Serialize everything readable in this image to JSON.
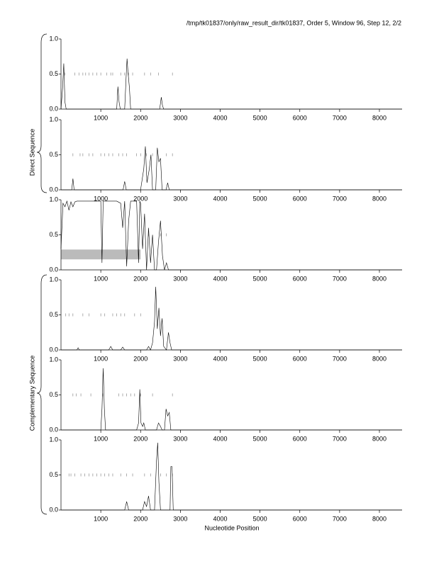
{
  "page": {
    "title": "/tmp/tk01837/only/raw_result_dir/tk01837, Order 5, Window 96, Step 12, 2/2",
    "xlabel": "Nucleotide Position",
    "groups": [
      "Direct Sequence",
      "Complementary Sequence"
    ]
  },
  "chart_data": [
    {
      "type": "line",
      "color": "#000000",
      "xlim": [
        0,
        8570
      ],
      "ylim": [
        0,
        1
      ],
      "xticks": [
        1000,
        2000,
        3000,
        4000,
        5000,
        6000,
        7000,
        8000
      ],
      "yticks": [
        {
          "value": 0,
          "label": "0.0"
        },
        0.5,
        {
          "value": 1,
          "label": "1.0"
        }
      ],
      "x": [
        0,
        40,
        70,
        100,
        130,
        1400,
        1430,
        1460,
        1490,
        1600,
        1640,
        1660,
        1680,
        1720,
        1750,
        2480,
        2520,
        2550,
        2580,
        8570
      ],
      "values": [
        0,
        0.3,
        0.65,
        0.1,
        0,
        0,
        0.32,
        0.1,
        0,
        0,
        0.5,
        0.72,
        0.55,
        0.3,
        0,
        0,
        0.17,
        0.05,
        0,
        0
      ],
      "stop_codons": [
        100,
        350,
        450,
        550,
        620,
        700,
        800,
        900,
        1000,
        1150,
        1250,
        1300,
        1500,
        1600,
        1700,
        1800,
        2100,
        2250,
        2450,
        2800
      ]
    },
    {
      "type": "line",
      "color": "#000000",
      "xlim": [
        0,
        8570
      ],
      "ylim": [
        0,
        1
      ],
      "xticks": [
        1000,
        2000,
        3000,
        4000,
        5000,
        6000,
        7000,
        8000
      ],
      "yticks": [
        {
          "value": 0,
          "label": "0.0"
        },
        0.5,
        {
          "value": 1,
          "label": "1.0"
        }
      ],
      "x": [
        0,
        270,
        300,
        330,
        1560,
        1600,
        1640,
        2000,
        2080,
        2120,
        2160,
        2220,
        2260,
        2300,
        2380,
        2420,
        2460,
        2500,
        2540,
        2640,
        2680,
        2720,
        8570
      ],
      "values": [
        0,
        0,
        0.16,
        0,
        0,
        0.12,
        0,
        0,
        0.3,
        0.62,
        0.1,
        0.3,
        0.5,
        0,
        0,
        0.6,
        0.4,
        0.45,
        0,
        0,
        0.1,
        0,
        0
      ],
      "stop_codons": [
        300,
        480,
        550,
        700,
        800,
        1000,
        1100,
        1200,
        1300,
        1450,
        1550,
        1650,
        1900,
        2000,
        2150,
        2300,
        2650,
        2800
      ]
    },
    {
      "type": "line",
      "color": "#000000",
      "xlim": [
        0,
        8570
      ],
      "ylim": [
        0,
        1
      ],
      "xticks": [
        1000,
        2000,
        3000,
        4000,
        5000,
        6000,
        7000,
        8000
      ],
      "yticks": [
        {
          "value": 0,
          "label": "0.0"
        },
        0.5,
        {
          "value": 1,
          "label": "1.0"
        }
      ],
      "x": [
        0,
        50,
        100,
        150,
        200,
        250,
        300,
        350,
        400,
        1000,
        1030,
        1060,
        1100,
        1400,
        1500,
        1550,
        1600,
        1650,
        1700,
        1750,
        1800,
        1900,
        1950,
        1980,
        2000,
        2050,
        2100,
        2150,
        2200,
        2250,
        2300,
        2350,
        2400,
        2450,
        2500,
        2550,
        2600,
        2650,
        2700,
        2750,
        8570
      ],
      "values": [
        0.3,
        0.95,
        0.9,
        0.98,
        0.85,
        0.97,
        0.9,
        0.97,
        0.98,
        0.98,
        0.1,
        0.98,
        0.98,
        0.98,
        0.95,
        0.6,
        0.98,
        0.05,
        0.7,
        0.98,
        0.98,
        0.98,
        0.1,
        0.98,
        0.95,
        0.3,
        0.8,
        0,
        0.6,
        0.1,
        0.5,
        0,
        0,
        0.4,
        0.7,
        0.2,
        0,
        0.1,
        0,
        0,
        0
      ],
      "stop_codons": [
        2200,
        2500,
        2650
      ],
      "shaded_region": {
        "x": [
          0,
          2000
        ],
        "y": [
          0.15,
          0.29
        ],
        "color": "#bbbbbb"
      }
    },
    {
      "type": "line",
      "color": "#000000",
      "xlim": [
        0,
        8570
      ],
      "ylim": [
        0,
        1
      ],
      "xticks": [
        1000,
        2000,
        3000,
        4000,
        5000,
        6000,
        7000,
        8000
      ],
      "yticks": [
        {
          "value": 0,
          "label": "0.0"
        },
        0.5,
        {
          "value": 1,
          "label": "1.0"
        }
      ],
      "x": [
        0,
        400,
        430,
        460,
        1200,
        1250,
        1300,
        1500,
        1550,
        1600,
        2150,
        2200,
        2250,
        2300,
        2350,
        2380,
        2420,
        2460,
        2500,
        2540,
        2580,
        2650,
        2700,
        2740,
        2780,
        8570
      ],
      "values": [
        0,
        0,
        0.03,
        0,
        0,
        0.05,
        0,
        0,
        0.04,
        0,
        0,
        0.05,
        0,
        0.1,
        0.4,
        0.9,
        0.3,
        0.6,
        0.2,
        0.45,
        0.05,
        0,
        0.25,
        0.1,
        0,
        0
      ],
      "stop_codons": [
        120,
        200,
        300,
        550,
        700,
        1000,
        1100,
        1300,
        1400,
        1500,
        1600,
        1850,
        2000
      ]
    },
    {
      "type": "line",
      "color": "#000000",
      "xlim": [
        0,
        8570
      ],
      "ylim": [
        0,
        1
      ],
      "xticks": [
        1000,
        2000,
        3000,
        4000,
        5000,
        6000,
        7000,
        8000
      ],
      "yticks": [
        {
          "value": 0,
          "label": "0.0"
        },
        0.5,
        {
          "value": 1,
          "label": "1.0"
        }
      ],
      "x": [
        0,
        1000,
        1030,
        1060,
        1090,
        1120,
        1900,
        1950,
        1980,
        2010,
        2050,
        2080,
        2120,
        2400,
        2450,
        2500,
        2540,
        2600,
        2640,
        2680,
        2720,
        2760,
        8570
      ],
      "values": [
        0,
        0,
        0.3,
        0.88,
        0.3,
        0,
        0,
        0.1,
        0.58,
        0.1,
        0.05,
        0.1,
        0,
        0,
        0.1,
        0.05,
        0,
        0,
        0.3,
        0.2,
        0.25,
        0,
        0
      ],
      "stop_codons": [
        300,
        380,
        500,
        750,
        1050,
        1450,
        1550,
        1650,
        1750,
        1850,
        2000,
        2300,
        2800
      ]
    },
    {
      "type": "line",
      "color": "#000000",
      "xlim": [
        0,
        8570
      ],
      "ylim": [
        0,
        1
      ],
      "xticks": [
        1000,
        2000,
        3000,
        4000,
        5000,
        6000,
        7000,
        8000
      ],
      "yticks": [
        {
          "value": 0,
          "label": "0.0"
        },
        0.5,
        {
          "value": 1,
          "label": "1.0"
        }
      ],
      "x": [
        0,
        1600,
        1650,
        1700,
        2050,
        2100,
        2150,
        2200,
        2250,
        2350,
        2400,
        2430,
        2460,
        2500,
        2740,
        2760,
        2790,
        2820,
        8570
      ],
      "values": [
        0,
        0,
        0.12,
        0,
        0,
        0.12,
        0.05,
        0.2,
        0,
        0,
        0.7,
        0.96,
        0.4,
        0,
        0,
        0.62,
        0.62,
        0,
        0
      ],
      "stop_codons": [
        200,
        250,
        350,
        500,
        600,
        700,
        800,
        900,
        1000,
        1100,
        1200,
        1300,
        1500,
        1650,
        1800,
        2100,
        2250,
        2500,
        2650,
        2800
      ]
    }
  ]
}
